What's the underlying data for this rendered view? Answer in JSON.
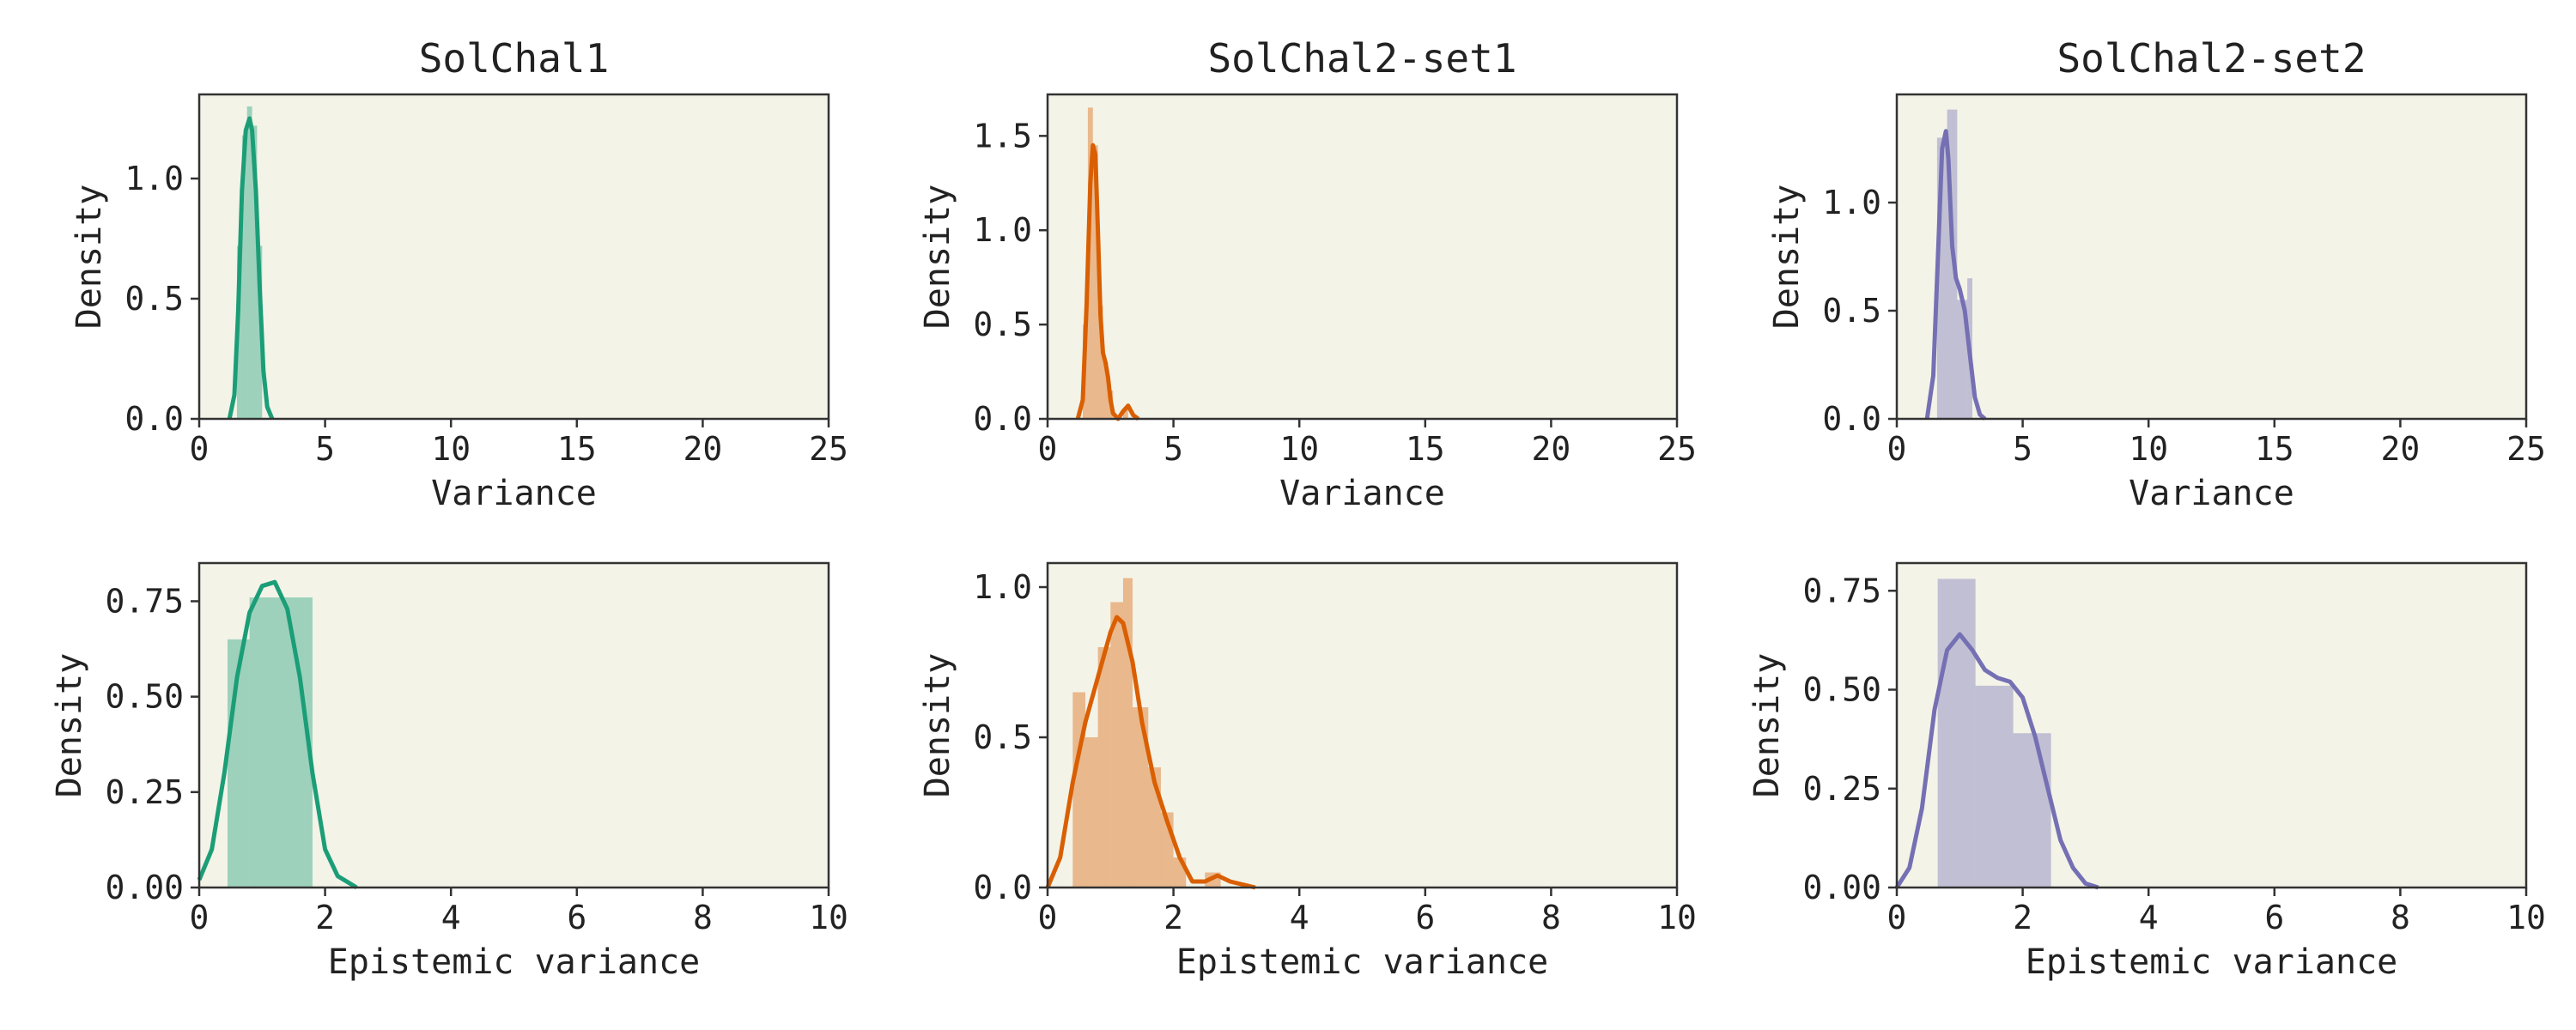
{
  "figure": {
    "background": "#ffffff",
    "axes_face": "#f3f3e8"
  },
  "chart_data": [
    {
      "type": "histogram+kde",
      "title": "SolChal1",
      "xlabel": "Variance",
      "ylabel": "Density",
      "color": "#1b9e77",
      "xlim": [
        0,
        25
      ],
      "ylim": [
        0,
        1.35
      ],
      "xticks": [
        "0",
        "5",
        "10",
        "15",
        "20",
        "25"
      ],
      "yticks": [
        "0.0",
        "0.5",
        "1.0"
      ],
      "ytick_values": [
        0,
        0.5,
        1.0
      ],
      "bins": [
        {
          "x0": 1.5,
          "x1": 1.7,
          "height": 0.72
        },
        {
          "x0": 1.7,
          "x1": 1.9,
          "height": 1.18
        },
        {
          "x0": 1.9,
          "x1": 2.1,
          "height": 1.3
        },
        {
          "x0": 2.1,
          "x1": 2.3,
          "height": 1.22
        },
        {
          "x0": 2.3,
          "x1": 2.5,
          "height": 0.72
        }
      ],
      "kde": {
        "x": [
          1.2,
          1.4,
          1.55,
          1.7,
          1.85,
          2.0,
          2.1,
          2.25,
          2.4,
          2.55,
          2.7,
          2.9
        ],
        "y": [
          0.0,
          0.1,
          0.45,
          0.95,
          1.2,
          1.25,
          1.2,
          0.95,
          0.55,
          0.2,
          0.05,
          0.0
        ]
      }
    },
    {
      "type": "histogram+kde",
      "title": "SolChal2-set1",
      "xlabel": "Variance",
      "ylabel": "Density",
      "color": "#d95f02",
      "xlim": [
        0,
        25
      ],
      "ylim": [
        0,
        1.72
      ],
      "xticks": [
        "0",
        "5",
        "10",
        "15",
        "20",
        "25"
      ],
      "yticks": [
        "0.0",
        "0.5",
        "1.0",
        "1.5"
      ],
      "ytick_values": [
        0,
        0.5,
        1.0,
        1.5
      ],
      "bins": [
        {
          "x0": 1.4,
          "x1": 1.6,
          "height": 0.5
        },
        {
          "x0": 1.6,
          "x1": 1.8,
          "height": 1.65
        },
        {
          "x0": 1.8,
          "x1": 2.0,
          "height": 1.45
        },
        {
          "x0": 2.0,
          "x1": 2.2,
          "height": 0.6
        },
        {
          "x0": 2.2,
          "x1": 2.4,
          "height": 0.3
        },
        {
          "x0": 2.4,
          "x1": 2.6,
          "height": 0.15
        },
        {
          "x0": 3.0,
          "x1": 3.2,
          "height": 0.05
        }
      ],
      "kde": {
        "x": [
          1.2,
          1.4,
          1.55,
          1.7,
          1.8,
          1.9,
          2.0,
          2.1,
          2.2,
          2.3,
          2.4,
          2.5,
          2.6,
          2.8,
          3.0,
          3.2,
          3.4,
          3.6
        ],
        "y": [
          0.0,
          0.1,
          0.6,
          1.25,
          1.45,
          1.4,
          1.0,
          0.55,
          0.35,
          0.3,
          0.22,
          0.1,
          0.03,
          0.0,
          0.04,
          0.07,
          0.02,
          0.0
        ]
      }
    },
    {
      "type": "histogram+kde",
      "title": "SolChal2-set2",
      "xlabel": "Variance",
      "ylabel": "Density",
      "color": "#7570b3",
      "xlim": [
        0,
        25
      ],
      "ylim": [
        0,
        1.5
      ],
      "xticks": [
        "0",
        "5",
        "10",
        "15",
        "20",
        "25"
      ],
      "yticks": [
        "0.0",
        "0.5",
        "1.0"
      ],
      "ytick_values": [
        0,
        0.5,
        1.0
      ],
      "bins": [
        {
          "x0": 1.6,
          "x1": 2.0,
          "height": 1.3
        },
        {
          "x0": 2.0,
          "x1": 2.4,
          "height": 1.43
        },
        {
          "x0": 2.4,
          "x1": 2.8,
          "height": 0.55
        },
        {
          "x0": 2.8,
          "x1": 3.0,
          "height": 0.65
        }
      ],
      "kde": {
        "x": [
          1.2,
          1.45,
          1.65,
          1.8,
          1.95,
          2.05,
          2.2,
          2.35,
          2.5,
          2.7,
          2.9,
          3.1,
          3.3,
          3.5
        ],
        "y": [
          0.0,
          0.2,
          0.8,
          1.25,
          1.33,
          1.2,
          0.8,
          0.65,
          0.6,
          0.5,
          0.3,
          0.1,
          0.02,
          0.0
        ]
      }
    },
    {
      "type": "histogram+kde",
      "title": "",
      "xlabel": "Epistemic variance",
      "ylabel": "Density",
      "color": "#1b9e77",
      "xlim": [
        0,
        10
      ],
      "ylim": [
        0,
        0.85
      ],
      "xticks": [
        "0",
        "2",
        "4",
        "6",
        "8",
        "10"
      ],
      "yticks": [
        "0.00",
        "0.25",
        "0.50",
        "0.75"
      ],
      "ytick_values": [
        0,
        0.25,
        0.5,
        0.75
      ],
      "bins": [
        {
          "x0": 0.45,
          "x1": 0.8,
          "height": 0.65
        },
        {
          "x0": 0.8,
          "x1": 1.8,
          "height": 0.76
        }
      ],
      "kde": {
        "x": [
          0.0,
          0.2,
          0.4,
          0.6,
          0.8,
          1.0,
          1.2,
          1.4,
          1.6,
          1.8,
          2.0,
          2.2,
          2.5
        ],
        "y": [
          0.02,
          0.1,
          0.3,
          0.55,
          0.72,
          0.79,
          0.8,
          0.73,
          0.55,
          0.3,
          0.1,
          0.03,
          0.0
        ]
      }
    },
    {
      "type": "histogram+kde",
      "title": "",
      "xlabel": "Epistemic variance",
      "ylabel": "Density",
      "color": "#d95f02",
      "xlim": [
        0,
        10
      ],
      "ylim": [
        0,
        1.08
      ],
      "xticks": [
        "0",
        "2",
        "4",
        "6",
        "8",
        "10"
      ],
      "yticks": [
        "0.0",
        "0.5",
        "1.0"
      ],
      "ytick_values": [
        0,
        0.5,
        1.0
      ],
      "bins": [
        {
          "x0": 0.4,
          "x1": 0.6,
          "height": 0.65
        },
        {
          "x0": 0.6,
          "x1": 0.8,
          "height": 0.5
        },
        {
          "x0": 0.8,
          "x1": 1.0,
          "height": 0.8
        },
        {
          "x0": 1.0,
          "x1": 1.2,
          "height": 0.95
        },
        {
          "x0": 1.2,
          "x1": 1.35,
          "height": 1.03
        },
        {
          "x0": 1.35,
          "x1": 1.6,
          "height": 0.6
        },
        {
          "x0": 1.6,
          "x1": 1.8,
          "height": 0.4
        },
        {
          "x0": 1.8,
          "x1": 2.0,
          "height": 0.25
        },
        {
          "x0": 2.0,
          "x1": 2.2,
          "height": 0.1
        },
        {
          "x0": 2.5,
          "x1": 2.75,
          "height": 0.05
        }
      ],
      "kde": {
        "x": [
          0.0,
          0.2,
          0.4,
          0.6,
          0.8,
          1.0,
          1.1,
          1.2,
          1.35,
          1.5,
          1.7,
          1.9,
          2.1,
          2.3,
          2.5,
          2.7,
          2.9,
          3.1,
          3.3
        ],
        "y": [
          0.0,
          0.1,
          0.35,
          0.55,
          0.7,
          0.85,
          0.9,
          0.88,
          0.75,
          0.55,
          0.35,
          0.22,
          0.1,
          0.02,
          0.02,
          0.04,
          0.02,
          0.01,
          0.0
        ]
      }
    },
    {
      "type": "histogram+kde",
      "title": "",
      "xlabel": "Epistemic variance",
      "ylabel": "Density",
      "color": "#7570b3",
      "xlim": [
        0,
        10
      ],
      "ylim": [
        0,
        0.82
      ],
      "xticks": [
        "0",
        "2",
        "4",
        "6",
        "8",
        "10"
      ],
      "yticks": [
        "0.00",
        "0.25",
        "0.50",
        "0.75"
      ],
      "ytick_values": [
        0,
        0.25,
        0.5,
        0.75
      ],
      "bins": [
        {
          "x0": 0.65,
          "x1": 1.25,
          "height": 0.78
        },
        {
          "x0": 1.25,
          "x1": 1.85,
          "height": 0.51
        },
        {
          "x0": 1.85,
          "x1": 2.45,
          "height": 0.39
        }
      ],
      "kde": {
        "x": [
          0.0,
          0.2,
          0.4,
          0.6,
          0.8,
          1.0,
          1.2,
          1.4,
          1.6,
          1.8,
          2.0,
          2.2,
          2.4,
          2.6,
          2.8,
          3.0,
          3.2
        ],
        "y": [
          0.0,
          0.05,
          0.2,
          0.45,
          0.6,
          0.64,
          0.6,
          0.55,
          0.53,
          0.52,
          0.48,
          0.38,
          0.25,
          0.12,
          0.05,
          0.01,
          0.0
        ]
      }
    }
  ]
}
